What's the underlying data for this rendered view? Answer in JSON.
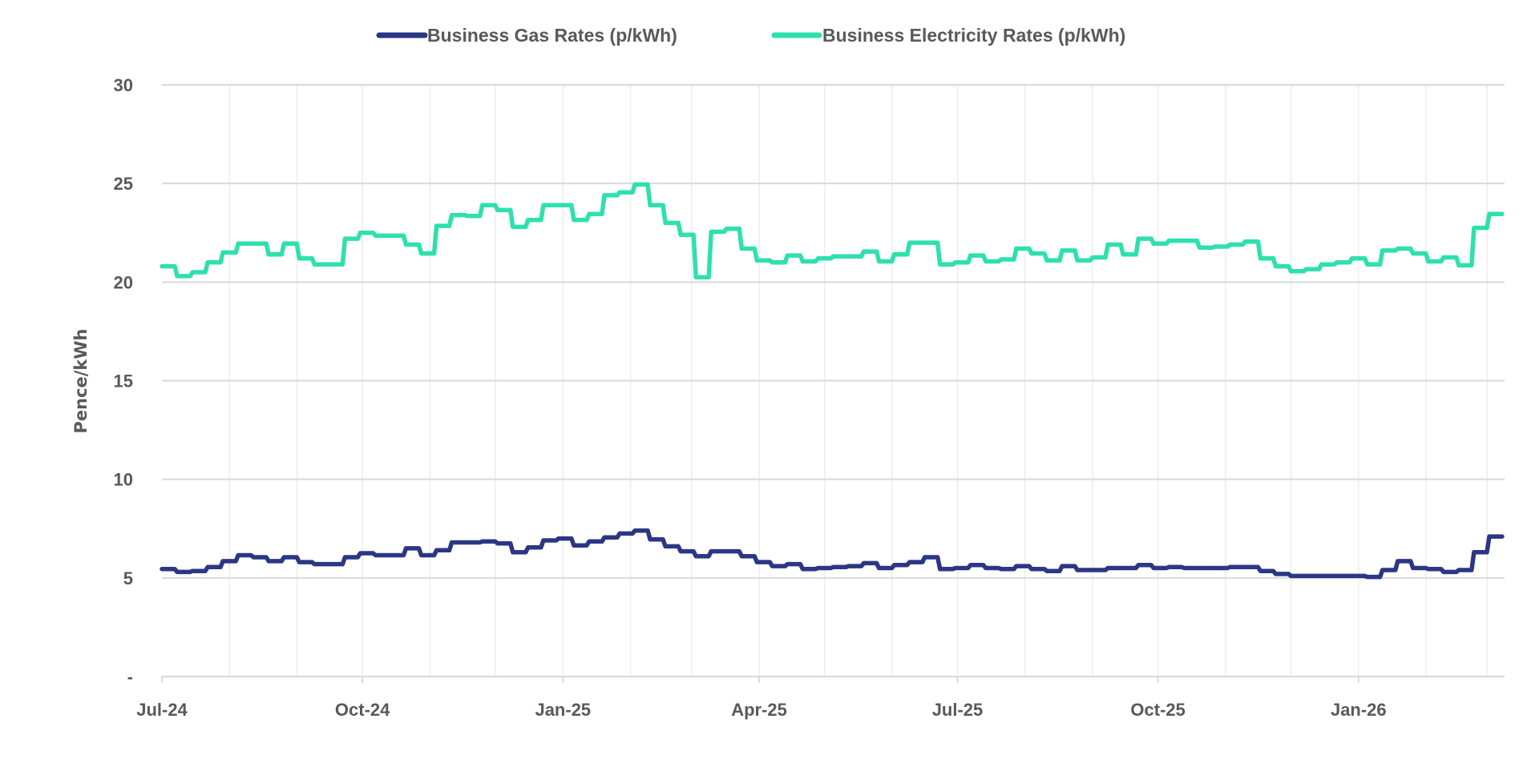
{
  "chart_data": {
    "type": "line",
    "step": true,
    "title": "",
    "xlabel": "",
    "ylabel": "Pence/kWh",
    "ylim": [
      0,
      30
    ],
    "yticks": [
      0,
      5,
      10,
      15,
      20,
      25,
      30
    ],
    "ytick_labels": [
      "-",
      "5",
      "10",
      "15",
      "20",
      "25",
      "30"
    ],
    "xlim": [
      "2024-07-01",
      "2026-03-09"
    ],
    "xtick_labels": [
      {
        "date": "2024-07-01",
        "label": "Jul-24"
      },
      {
        "date": "2024-10-01",
        "label": "Oct-24"
      },
      {
        "date": "2025-01-01",
        "label": "Jan-25"
      },
      {
        "date": "2025-04-01",
        "label": "Apr-25"
      },
      {
        "date": "2025-07-01",
        "label": "Jul-25"
      },
      {
        "date": "2025-10-01",
        "label": "Oct-25"
      },
      {
        "date": "2026-01-01",
        "label": "Jan-26"
      }
    ],
    "grid": {
      "horizontal": true,
      "vertical": "monthly"
    },
    "legend_position": "top",
    "x": [
      "2024-07-01",
      "2024-07-08",
      "2024-07-15",
      "2024-07-22",
      "2024-07-29",
      "2024-08-05",
      "2024-08-12",
      "2024-08-19",
      "2024-08-26",
      "2024-09-02",
      "2024-09-09",
      "2024-09-16",
      "2024-09-23",
      "2024-09-30",
      "2024-10-07",
      "2024-10-14",
      "2024-10-21",
      "2024-10-28",
      "2024-11-04",
      "2024-11-11",
      "2024-11-18",
      "2024-11-25",
      "2024-12-02",
      "2024-12-09",
      "2024-12-16",
      "2024-12-23",
      "2024-12-30",
      "2025-01-06",
      "2025-01-13",
      "2025-01-20",
      "2025-01-27",
      "2025-02-03",
      "2025-02-10",
      "2025-02-17",
      "2025-02-24",
      "2025-03-03",
      "2025-03-10",
      "2025-03-17",
      "2025-03-24",
      "2025-03-31",
      "2025-04-07",
      "2025-04-14",
      "2025-04-21",
      "2025-04-28",
      "2025-05-05",
      "2025-05-12",
      "2025-05-19",
      "2025-05-26",
      "2025-06-02",
      "2025-06-09",
      "2025-06-16",
      "2025-06-23",
      "2025-06-30",
      "2025-07-07",
      "2025-07-14",
      "2025-07-21",
      "2025-07-28",
      "2025-08-04",
      "2025-08-11",
      "2025-08-18",
      "2025-08-25",
      "2025-09-01",
      "2025-09-08",
      "2025-09-15",
      "2025-09-22",
      "2025-09-29",
      "2025-10-06",
      "2025-10-13",
      "2025-10-20",
      "2025-10-27",
      "2025-11-03",
      "2025-11-10",
      "2025-11-17",
      "2025-11-24",
      "2025-12-01",
      "2025-12-08",
      "2025-12-15",
      "2025-12-22",
      "2025-12-29",
      "2026-01-05",
      "2026-01-12",
      "2026-01-19",
      "2026-01-26",
      "2026-02-02",
      "2026-02-09",
      "2026-02-16",
      "2026-02-23",
      "2026-03-02"
    ],
    "series": [
      {
        "name": "Business Gas Rates (p/kWh)",
        "color": "#2B3784",
        "values": [
          5.45,
          5.3,
          5.35,
          5.55,
          5.85,
          6.15,
          6.05,
          5.85,
          6.05,
          5.8,
          5.7,
          5.7,
          6.05,
          6.25,
          6.15,
          6.15,
          6.5,
          6.15,
          6.4,
          6.8,
          6.8,
          6.85,
          6.75,
          6.3,
          6.55,
          6.9,
          7.0,
          6.65,
          6.85,
          7.05,
          7.25,
          7.4,
          6.95,
          6.6,
          6.35,
          6.1,
          6.35,
          6.35,
          6.1,
          5.8,
          5.6,
          5.7,
          5.45,
          5.5,
          5.55,
          5.6,
          5.75,
          5.5,
          5.65,
          5.8,
          6.05,
          5.45,
          5.5,
          5.65,
          5.5,
          5.45,
          5.6,
          5.45,
          5.35,
          5.6,
          5.4,
          5.4,
          5.5,
          5.5,
          5.65,
          5.5,
          5.55,
          5.5,
          5.5,
          5.5,
          5.55,
          5.55,
          5.35,
          5.2,
          5.1,
          5.1,
          5.1,
          5.1,
          5.1,
          5.05,
          5.4,
          5.85,
          5.5,
          5.45,
          5.3,
          5.4,
          6.3,
          7.1
        ]
      },
      {
        "name": "Business Electricity Rates (p/kWh)",
        "color": "#2EE0AE",
        "values": [
          20.8,
          20.3,
          20.5,
          21.0,
          21.5,
          21.95,
          21.95,
          21.4,
          21.95,
          21.2,
          20.9,
          20.9,
          22.2,
          22.5,
          22.35,
          22.35,
          21.9,
          21.45,
          22.85,
          23.4,
          23.35,
          23.9,
          23.65,
          22.8,
          23.15,
          23.9,
          23.9,
          23.15,
          23.45,
          24.4,
          24.55,
          24.95,
          23.9,
          23.0,
          22.4,
          20.25,
          22.55,
          22.7,
          21.7,
          21.1,
          21.0,
          21.35,
          21.05,
          21.2,
          21.3,
          21.3,
          21.55,
          21.05,
          21.4,
          22.0,
          22.0,
          20.9,
          21.0,
          21.35,
          21.05,
          21.15,
          21.7,
          21.45,
          21.1,
          21.6,
          21.1,
          21.25,
          21.9,
          21.4,
          22.2,
          21.95,
          22.1,
          22.1,
          21.75,
          21.8,
          21.9,
          22.05,
          21.2,
          20.8,
          20.55,
          20.65,
          20.9,
          21.0,
          21.2,
          20.9,
          21.6,
          21.7,
          21.45,
          21.05,
          21.25,
          20.85,
          22.75,
          23.45
        ]
      }
    ]
  }
}
